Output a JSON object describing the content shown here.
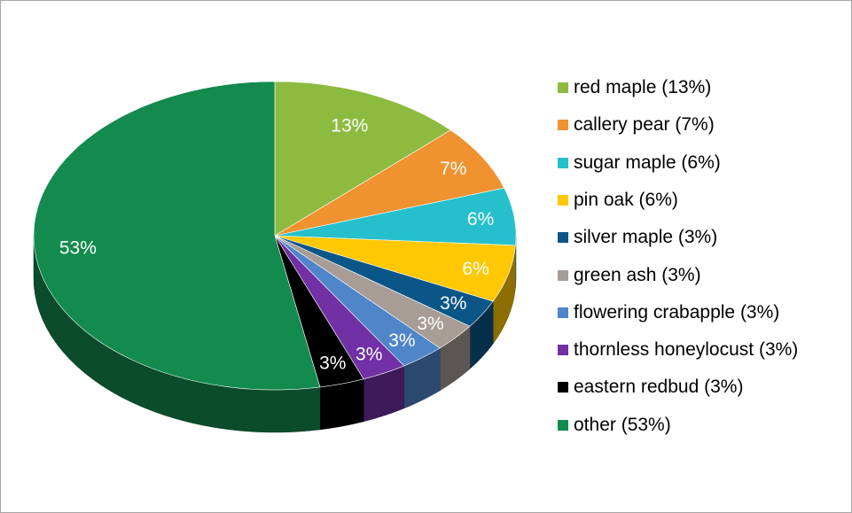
{
  "chart_data": {
    "type": "pie",
    "style": "3d",
    "slices": [
      {
        "label": "red maple (13%)",
        "value": 13,
        "data_label": "13%",
        "color": "#8dbb40"
      },
      {
        "label": "callery pear (7%)",
        "value": 7,
        "data_label": "7%",
        "color": "#f0922f"
      },
      {
        "label": "sugar maple (6%)",
        "value": 6,
        "data_label": "6%",
        "color": "#26c0cc"
      },
      {
        "label": "pin oak (6%)",
        "value": 6,
        "data_label": "6%",
        "color": "#ffc803"
      },
      {
        "label": "silver maple (3%)",
        "value": 3,
        "data_label": "3%",
        "color": "#0b5689"
      },
      {
        "label": "green ash (3%)",
        "value": 3,
        "data_label": "3%",
        "color": "#a79d96"
      },
      {
        "label": "flowering crabapple (3%)",
        "value": 3,
        "data_label": "3%",
        "color": "#4f85c9"
      },
      {
        "label": "thornless honeylocust (3%)",
        "value": 3,
        "data_label": "3%",
        "color": "#7130a5"
      },
      {
        "label": "eastern redbud (3%)",
        "value": 3,
        "data_label": "3%",
        "color": "#000000"
      },
      {
        "label": "other (53%)",
        "value": 53,
        "data_label": "53%",
        "color": "#138a4e"
      }
    ],
    "legend_position": "right"
  }
}
